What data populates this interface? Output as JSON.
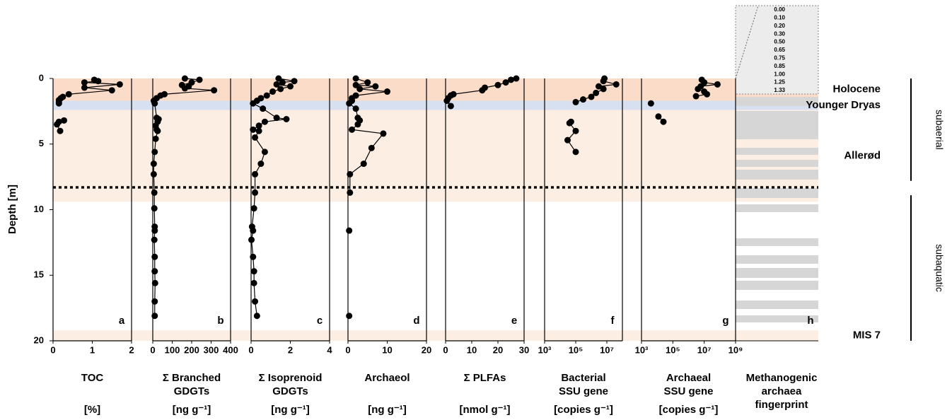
{
  "depth_axis": {
    "label": "Depth [m]",
    "ylim": [
      0,
      20
    ],
    "yticks": [
      0,
      5,
      10,
      15,
      20
    ]
  },
  "zones": [
    {
      "name": "Holocene",
      "from": 0,
      "to": 1.7,
      "color": "#fbdcc8"
    },
    {
      "name": "Younger Dryas",
      "from": 1.7,
      "to": 2.4,
      "color": "#d6e0f0"
    },
    {
      "name": "Allerød",
      "from": 2.4,
      "to": 9.4,
      "color": "#fdeee3"
    },
    {
      "name": "MIS 7",
      "from": 19.2,
      "to": 20,
      "color": "#fdeee3"
    }
  ],
  "boundary_depth": 8.3,
  "phases": [
    {
      "name": "subaerial",
      "from": 0,
      "to": 7.8
    },
    {
      "name": "subaquatic",
      "from": 8.9,
      "to": 20
    }
  ],
  "fingerprint": {
    "letter": "h",
    "label": [
      "Methanogenic",
      "archaea",
      "fingerprint"
    ],
    "inset_labels": [
      "0.00",
      "0.10",
      "0.20",
      "0.30",
      "0.50",
      "0.65",
      "0.75",
      "0.85",
      "1.00",
      "1.25",
      "1.33"
    ]
  },
  "chart_data": [
    {
      "type": "line",
      "letter": "a",
      "label": [
        "TOC"
      ],
      "unit": "[%]",
      "xlim": [
        0,
        2
      ],
      "xticks": [
        0,
        1,
        2
      ],
      "depth": [
        0.1,
        0.2,
        0.3,
        0.45,
        0.7,
        0.9,
        1.2,
        1.4,
        1.5,
        1.65,
        1.8,
        1.9,
        null,
        3.2,
        3.3,
        3.5,
        4.0
      ],
      "values": [
        1.05,
        1.15,
        0.8,
        1.7,
        0.8,
        1.5,
        0.4,
        0.25,
        0.2,
        0.15,
        0.15,
        0.15,
        null,
        0.28,
        0.15,
        0.1,
        0.18
      ]
    },
    {
      "type": "line",
      "letter": "b",
      "label": [
        "Σ Branched",
        "GDGTs"
      ],
      "unit": "[ng g⁻¹]",
      "xlim": [
        0,
        400
      ],
      "xticks": [
        0,
        100,
        200,
        300,
        400
      ],
      "depth": [
        0.0,
        0.1,
        0.3,
        0.5,
        0.6,
        0.75,
        0.9,
        1.2,
        1.3,
        1.5,
        1.7,
        1.9,
        3.0,
        3.1,
        3.3,
        3.6,
        3.9,
        4.0,
        4.6,
        5.6,
        6.5,
        7.3,
        8.7,
        9.9,
        11.3,
        11.6,
        12.3,
        13.6,
        14.7,
        15.6,
        17.0,
        18.1
      ],
      "values": [
        165,
        240,
        200,
        150,
        185,
        165,
        315,
        60,
        40,
        20,
        5,
        10,
        20,
        30,
        25,
        15,
        20,
        25,
        15,
        10,
        5,
        5,
        8,
        8,
        10,
        10,
        8,
        10,
        10,
        12,
        10,
        10
      ]
    },
    {
      "type": "line",
      "letter": "c",
      "label": [
        "Σ Isoprenoid",
        "GDGTs"
      ],
      "unit": "[ng g⁻¹]",
      "xlim": [
        0,
        4
      ],
      "xticks": [
        0,
        2,
        4
      ],
      "depth": [
        0.0,
        0.2,
        0.3,
        0.45,
        0.6,
        0.8,
        1.0,
        1.3,
        1.5,
        1.7,
        1.9,
        2.3,
        3.0,
        3.1,
        3.3,
        3.6,
        3.9,
        4.0,
        4.5,
        5.6,
        6.5,
        7.3,
        8.7,
        9.9,
        11.3,
        11.6,
        12.3,
        13.6,
        14.7,
        15.6,
        17.0,
        18.1
      ],
      "values": [
        1.4,
        2.2,
        1.6,
        1.3,
        2.0,
        1.5,
        1.1,
        0.8,
        0.5,
        0.3,
        0.1,
        0.6,
        1.3,
        1.8,
        0.7,
        0.4,
        0.1,
        0.4,
        0.2,
        0.7,
        0.5,
        0.2,
        0.2,
        0.15,
        0.05,
        0.1,
        0.02,
        0.1,
        0.15,
        0.15,
        0.2,
        0.3
      ]
    },
    {
      "type": "line",
      "letter": "d",
      "label": [
        "Archaeol"
      ],
      "unit": "[ng g⁻¹]",
      "xlim": [
        0,
        20
      ],
      "xticks": [
        0,
        10,
        20
      ],
      "depth": [
        0.0,
        0.3,
        0.5,
        0.6,
        0.8,
        1.0,
        1.3,
        1.5,
        1.7,
        1.9,
        2.3,
        3.0,
        3.2,
        3.5,
        3.9,
        4.2,
        5.3,
        6.5,
        7.3,
        8.7,
        null,
        11.6,
        null,
        18.1
      ],
      "values": [
        2,
        5,
        2,
        7,
        3,
        10,
        2,
        1,
        1,
        0.3,
        2,
        2.5,
        3,
        2.5,
        1,
        9,
        6,
        4,
        0.5,
        0.5,
        null,
        0.3,
        null,
        0.3
      ]
    },
    {
      "type": "line",
      "letter": "e",
      "label": [
        "Σ PLFAs"
      ],
      "unit": "[nmol g⁻¹]",
      "xlim": [
        0,
        30
      ],
      "xticks": [
        0,
        10,
        20,
        30
      ],
      "depth": [
        0.0,
        0.1,
        0.3,
        0.5,
        0.7,
        0.9,
        1.2,
        1.3,
        1.5,
        1.7,
        2.1
      ],
      "values": [
        27,
        25,
        23,
        20,
        15,
        14,
        3,
        2,
        1,
        0.5,
        2
      ]
    },
    {
      "type": "line",
      "letter": "f",
      "label": [
        "Bacterial",
        "SSU gene"
      ],
      "unit": "[copies g⁻¹]",
      "log": true,
      "xlim": [
        1000,
        100000000
      ],
      "xticks": [
        {
          "value": 1000,
          "label": "10³"
        },
        {
          "value": 100000,
          "label": "10⁵"
        },
        {
          "value": 10000000,
          "label": "10⁷"
        }
      ],
      "depth": [
        0.0,
        0.2,
        0.45,
        0.6,
        0.8,
        1.1,
        1.4,
        1.6,
        1.8,
        null,
        3.3,
        3.4,
        4.0,
        4.7,
        5.6
      ],
      "values": [
        7000000,
        6000000,
        40000000,
        3000000,
        6000000,
        2000000,
        1000000,
        300000,
        100000,
        null,
        50000,
        40000,
        100000,
        30000,
        100000
      ]
    },
    {
      "type": "line",
      "letter": "g",
      "label": [
        "Archaeal",
        "SSU gene"
      ],
      "unit": "[copies g⁻¹]",
      "log": true,
      "xlim": [
        1000,
        1000000000
      ],
      "xticks": [
        {
          "value": 1000,
          "label": "10³"
        },
        {
          "value": 100000,
          "label": "10⁵"
        },
        {
          "value": 10000000,
          "label": "10⁷"
        },
        {
          "value": 1000000000,
          "label": "10⁹"
        }
      ],
      "depth": [
        0.1,
        0.3,
        0.45,
        0.6,
        0.8,
        1.0,
        1.2,
        1.35,
        null,
        1.9,
        null,
        2.9,
        3.3
      ],
      "values": [
        7000000,
        10000000,
        70000000,
        6000000,
        4000000,
        10000000,
        15000000,
        3000000,
        null,
        4000,
        null,
        12000,
        25000
      ]
    }
  ]
}
